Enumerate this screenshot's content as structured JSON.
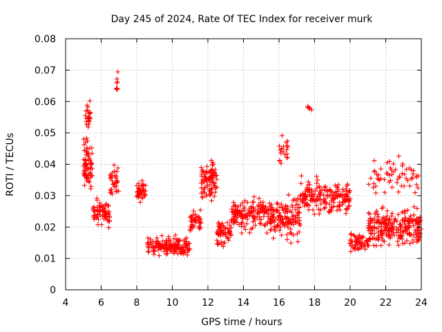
{
  "chart_data": {
    "type": "scatter",
    "title": "Day 245 of 2024, Rate Of TEC Index for receiver murk",
    "xlabel": "GPS time / hours",
    "ylabel": "ROTI / TECUs",
    "xlim": [
      4,
      24
    ],
    "ylim": [
      0,
      0.08
    ],
    "x_ticks": [
      4,
      6,
      8,
      10,
      12,
      14,
      16,
      18,
      20,
      22,
      24
    ],
    "x_tick_labels": [
      "4",
      "6",
      "8",
      "10",
      "12",
      "14",
      "16",
      "18",
      "20",
      "22",
      "24"
    ],
    "y_ticks": [
      0,
      0.01,
      0.02,
      0.03,
      0.04,
      0.05,
      0.06,
      0.07,
      0.08
    ],
    "y_tick_labels": [
      "0",
      "0.01",
      "0.02",
      "0.03",
      "0.04",
      "0.05",
      "0.06",
      "0.07",
      "0.08"
    ],
    "grid": true,
    "marker": "+",
    "color": "#ff0000",
    "series": [
      {
        "name": "ROTI",
        "segments": [
          {
            "x": [
              5.0,
              5.5
            ],
            "y_center": 0.04,
            "spread": 0.011,
            "n": 70
          },
          {
            "x": [
              5.1,
              5.4
            ],
            "y_center": 0.056,
            "spread": 0.007,
            "n": 22
          },
          {
            "x": [
              5.5,
              6.5
            ],
            "y_center": 0.024,
            "spread": 0.006,
            "n": 70
          },
          {
            "x": [
              6.5,
              7.0
            ],
            "y_center": 0.034,
            "spread": 0.007,
            "n": 30
          },
          {
            "x": [
              6.85,
              7.0
            ],
            "y_center": 0.066,
            "spread": 0.006,
            "n": 8
          },
          {
            "x": [
              8.0,
              8.6
            ],
            "y_center": 0.031,
            "spread": 0.005,
            "n": 40
          },
          {
            "x": [
              8.6,
              11.0
            ],
            "y_center": 0.014,
            "spread": 0.004,
            "n": 160
          },
          {
            "x": [
              11.0,
              11.6
            ],
            "y_center": 0.022,
            "spread": 0.005,
            "n": 40
          },
          {
            "x": [
              11.6,
              12.5
            ],
            "y_center": 0.035,
            "spread": 0.008,
            "n": 90
          },
          {
            "x": [
              12.5,
              13.3
            ],
            "y_center": 0.018,
            "spread": 0.006,
            "n": 60
          },
          {
            "x": [
              13.3,
              15.5
            ],
            "y_center": 0.024,
            "spread": 0.007,
            "n": 160
          },
          {
            "x": [
              15.5,
              17.2
            ],
            "y_center": 0.023,
            "spread": 0.009,
            "n": 140
          },
          {
            "x": [
              16.0,
              16.5
            ],
            "y_center": 0.045,
            "spread": 0.006,
            "n": 20
          },
          {
            "x": [
              17.2,
              18.5
            ],
            "y_center": 0.03,
            "spread": 0.007,
            "n": 80
          },
          {
            "x": [
              17.6,
              17.9
            ],
            "y_center": 0.058,
            "spread": 0.002,
            "n": 6
          },
          {
            "x": [
              18.5,
              20.0
            ],
            "y_center": 0.029,
            "spread": 0.007,
            "n": 100
          },
          {
            "x": [
              20.0,
              21.0
            ],
            "y_center": 0.015,
            "spread": 0.004,
            "n": 60
          },
          {
            "x": [
              21.0,
              24.0
            ],
            "y_center": 0.02,
            "spread": 0.008,
            "n": 240
          },
          {
            "x": [
              21.0,
              24.0
            ],
            "y_center": 0.036,
            "spread": 0.008,
            "n": 60
          }
        ]
      }
    ]
  }
}
